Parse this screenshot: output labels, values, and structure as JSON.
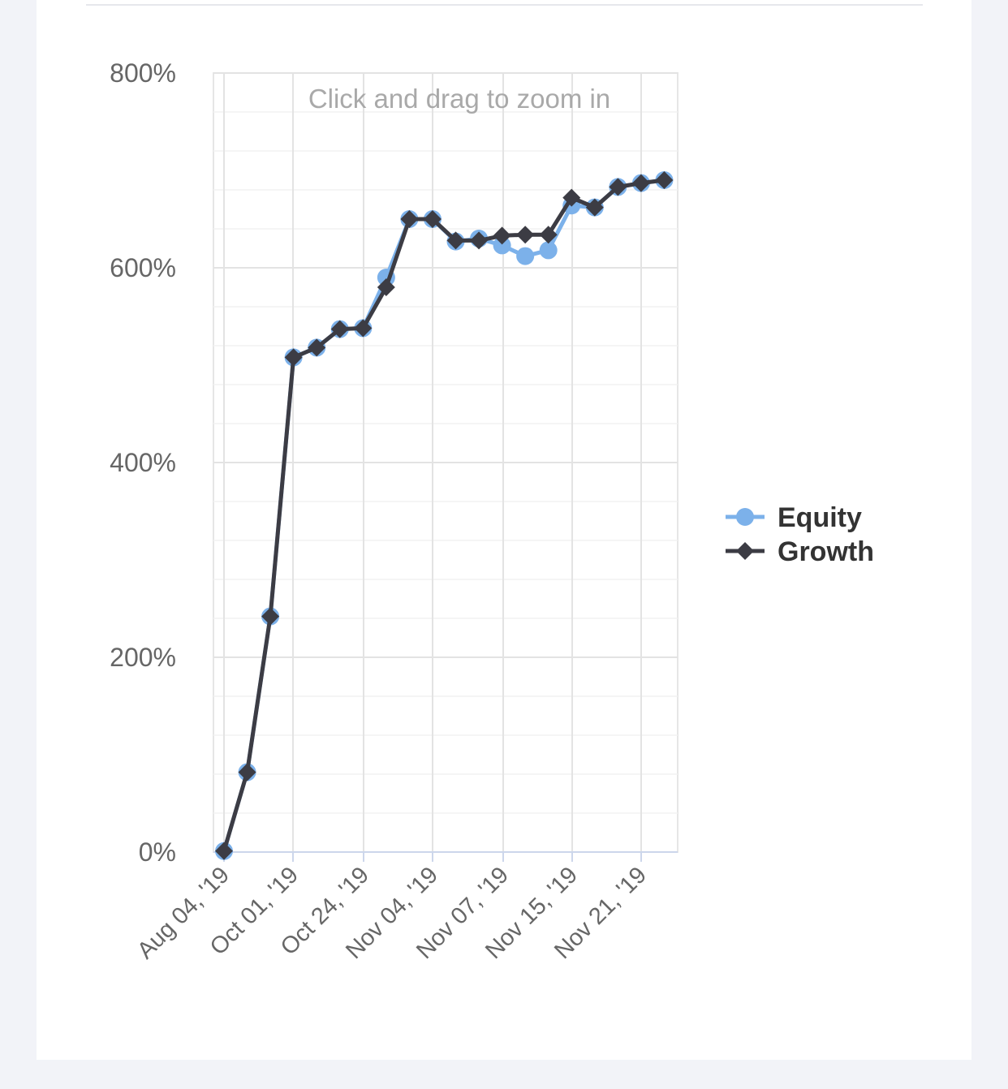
{
  "chart_data": {
    "type": "line",
    "zoom_hint": "Click and drag to zoom in",
    "x_tick_labels": [
      "Aug 04, '19",
      "Oct 01, '19",
      "Oct 24, '19",
      "Nov 04, '19",
      "Nov 07, '19",
      "Nov 15, '19",
      "Nov 21, '19"
    ],
    "x": [
      0,
      1,
      2,
      3,
      4,
      5,
      6,
      7,
      8,
      9,
      10,
      11,
      12,
      13,
      14,
      15,
      16,
      17,
      18,
      19
    ],
    "ylim": [
      0,
      800
    ],
    "y_ticks": [
      0,
      200,
      400,
      600,
      800
    ],
    "y_tick_labels": [
      "0%",
      "200%",
      "400%",
      "600%",
      "800%"
    ],
    "grid": true,
    "legend_position": "right",
    "series": [
      {
        "name": "Equity",
        "color": "#7cb1ea",
        "marker": "circle",
        "values": [
          1,
          82,
          242,
          508,
          518,
          537,
          538,
          590,
          650,
          650,
          627,
          630,
          623,
          612,
          618,
          664,
          662,
          683,
          687,
          690
        ]
      },
      {
        "name": "Growth",
        "color": "#3c3c44",
        "marker": "diamond",
        "values": [
          1,
          82,
          242,
          508,
          518,
          537,
          538,
          580,
          650,
          650,
          628,
          628,
          633,
          634,
          634,
          672,
          662,
          683,
          687,
          690
        ]
      }
    ]
  }
}
